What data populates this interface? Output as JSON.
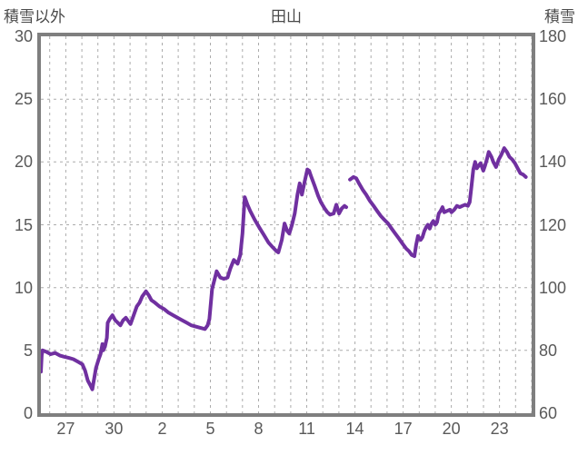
{
  "header": {
    "left_axis_title": "積雪以外",
    "chart_title": "田山",
    "right_axis_title": "積雪"
  },
  "colors": {
    "line": "#7030a0",
    "border": "#7f7f7f",
    "grid": "#ababab",
    "text": "#595959"
  },
  "chart_data": {
    "type": "line",
    "title": "田山",
    "left_axis": {
      "label": "積雪以外",
      "min": 0,
      "max": 30,
      "ticks": [
        30,
        25,
        20,
        15,
        10,
        5,
        0
      ]
    },
    "right_axis": {
      "label": "積雪",
      "min": 60,
      "max": 180,
      "ticks": [
        180,
        160,
        140,
        120,
        100,
        80,
        60
      ]
    },
    "x_axis": {
      "tick_labels": [
        "27",
        "30",
        "2",
        "5",
        "8",
        "11",
        "14",
        "17",
        "20",
        "23"
      ],
      "tick_days": [
        0,
        3,
        6,
        9,
        12,
        15,
        18,
        21,
        24,
        27
      ],
      "domain_days": [
        -1.55,
        29.0
      ],
      "daily_gridlines": true,
      "grid_style": "dashed"
    },
    "legend": "none",
    "series": [
      {
        "name": "積雪",
        "axis": "right",
        "unit": "cm",
        "gap_note": "data gap between day 17.5 and 17.7",
        "segments": [
          [
            [
              -1.55,
              73.2
            ],
            [
              -1.5,
              78.4
            ],
            [
              -1.45,
              80.0
            ],
            [
              -1.23,
              79.6
            ],
            [
              -0.94,
              78.8
            ],
            [
              -0.66,
              79.2
            ],
            [
              -0.38,
              78.4
            ],
            [
              -0.1,
              78.0
            ],
            [
              0.19,
              77.6
            ],
            [
              0.47,
              77.2
            ],
            [
              0.75,
              76.4
            ],
            [
              1.03,
              75.6
            ],
            [
              1.2,
              73.6
            ],
            [
              1.37,
              70.4
            ],
            [
              1.54,
              68.8
            ],
            [
              1.65,
              67.6
            ],
            [
              1.77,
              71.2
            ],
            [
              1.88,
              74.4
            ],
            [
              2.05,
              77.2
            ],
            [
              2.16,
              78.8
            ],
            [
              2.28,
              82.0
            ],
            [
              2.33,
              80.0
            ],
            [
              2.44,
              81.2
            ],
            [
              2.56,
              84.0
            ],
            [
              2.61,
              88.8
            ],
            [
              2.73,
              90.0
            ],
            [
              2.9,
              91.2
            ],
            [
              3.07,
              89.6
            ],
            [
              3.24,
              88.8
            ],
            [
              3.4,
              88.0
            ],
            [
              3.57,
              89.6
            ],
            [
              3.74,
              90.4
            ],
            [
              3.91,
              89.2
            ],
            [
              4.03,
              88.4
            ],
            [
              4.2,
              90.8
            ],
            [
              4.42,
              94.0
            ],
            [
              4.59,
              95.2
            ],
            [
              4.76,
              97.2
            ],
            [
              4.99,
              98.8
            ],
            [
              5.16,
              97.6
            ],
            [
              5.33,
              96.0
            ],
            [
              5.55,
              95.2
            ],
            [
              5.83,
              94.0
            ],
            [
              6.11,
              93.2
            ],
            [
              6.4,
              92.0
            ],
            [
              6.68,
              91.2
            ],
            [
              6.96,
              90.4
            ],
            [
              7.24,
              89.6
            ],
            [
              7.53,
              88.8
            ],
            [
              7.81,
              88.0
            ],
            [
              8.09,
              87.6
            ],
            [
              8.37,
              87.2
            ],
            [
              8.66,
              86.8
            ],
            [
              8.83,
              88.0
            ],
            [
              8.94,
              90.0
            ],
            [
              9.11,
              99.6
            ],
            [
              9.39,
              105.2
            ],
            [
              9.62,
              103.2
            ],
            [
              9.84,
              102.8
            ],
            [
              10.07,
              103.2
            ],
            [
              10.24,
              106.0
            ],
            [
              10.46,
              108.8
            ],
            [
              10.69,
              107.6
            ],
            [
              10.86,
              110.4
            ],
            [
              11.0,
              117.2
            ],
            [
              11.14,
              128.8
            ],
            [
              11.31,
              126.4
            ],
            [
              11.48,
              124.4
            ],
            [
              11.76,
              121.6
            ],
            [
              12.04,
              119.2
            ],
            [
              12.33,
              116.8
            ],
            [
              12.61,
              114.4
            ],
            [
              12.89,
              112.8
            ],
            [
              13.12,
              111.6
            ],
            [
              13.23,
              111.2
            ],
            [
              13.45,
              115.2
            ],
            [
              13.62,
              120.4
            ],
            [
              13.79,
              118.0
            ],
            [
              13.91,
              117.2
            ],
            [
              14.08,
              120.0
            ],
            [
              14.25,
              123.6
            ],
            [
              14.42,
              129.6
            ],
            [
              14.56,
              133.2
            ],
            [
              14.7,
              129.6
            ],
            [
              14.86,
              133.6
            ],
            [
              15.04,
              137.6
            ],
            [
              15.15,
              137.2
            ],
            [
              15.26,
              135.6
            ],
            [
              15.49,
              132.4
            ],
            [
              15.71,
              129.2
            ],
            [
              15.88,
              127.2
            ],
            [
              16.11,
              125.2
            ],
            [
              16.28,
              124.0
            ],
            [
              16.45,
              123.2
            ],
            [
              16.67,
              123.6
            ],
            [
              16.84,
              126.4
            ],
            [
              17.01,
              123.6
            ],
            [
              17.18,
              125.2
            ],
            [
              17.35,
              126.0
            ],
            [
              17.46,
              125.6
            ]
          ],
          [
            [
              17.69,
              134.4
            ],
            [
              17.91,
              135.2
            ],
            [
              18.08,
              134.8
            ],
            [
              18.25,
              133.2
            ],
            [
              18.48,
              131.2
            ],
            [
              18.7,
              129.6
            ],
            [
              18.93,
              127.6
            ],
            [
              19.16,
              126.0
            ],
            [
              19.38,
              124.4
            ],
            [
              19.61,
              122.8
            ],
            [
              19.83,
              121.6
            ],
            [
              20.06,
              120.4
            ],
            [
              20.28,
              118.8
            ],
            [
              20.51,
              117.2
            ],
            [
              20.74,
              115.6
            ],
            [
              20.96,
              114.0
            ],
            [
              21.19,
              112.4
            ],
            [
              21.36,
              111.6
            ],
            [
              21.53,
              110.4
            ],
            [
              21.7,
              110.0
            ],
            [
              21.81,
              113.6
            ],
            [
              21.92,
              116.4
            ],
            [
              22.09,
              115.2
            ],
            [
              22.2,
              116.0
            ],
            [
              22.32,
              118.0
            ],
            [
              22.43,
              119.2
            ],
            [
              22.54,
              120.0
            ],
            [
              22.66,
              118.8
            ],
            [
              22.77,
              120.4
            ],
            [
              22.88,
              121.2
            ],
            [
              23.0,
              120.0
            ],
            [
              23.11,
              120.8
            ],
            [
              23.22,
              123.6
            ],
            [
              23.33,
              124.4
            ],
            [
              23.45,
              125.6
            ],
            [
              23.56,
              124.0
            ],
            [
              23.73,
              124.4
            ],
            [
              23.9,
              124.8
            ],
            [
              24.01,
              124.0
            ],
            [
              24.18,
              124.8
            ],
            [
              24.35,
              126.0
            ],
            [
              24.52,
              125.6
            ],
            [
              24.69,
              126.0
            ],
            [
              24.86,
              126.4
            ],
            [
              25.03,
              126.0
            ],
            [
              25.14,
              127.2
            ],
            [
              25.25,
              132.0
            ],
            [
              25.37,
              137.6
            ],
            [
              25.48,
              140.0
            ],
            [
              25.59,
              138.0
            ],
            [
              25.7,
              138.8
            ],
            [
              25.82,
              139.6
            ],
            [
              25.99,
              137.2
            ],
            [
              26.1,
              138.8
            ],
            [
              26.21,
              140.8
            ],
            [
              26.33,
              143.2
            ],
            [
              26.5,
              141.6
            ],
            [
              26.61,
              140.0
            ],
            [
              26.78,
              138.4
            ],
            [
              26.95,
              140.8
            ],
            [
              27.12,
              142.4
            ],
            [
              27.29,
              144.4
            ],
            [
              27.46,
              143.2
            ],
            [
              27.62,
              141.6
            ],
            [
              27.79,
              140.8
            ],
            [
              27.96,
              139.6
            ],
            [
              28.13,
              138.0
            ],
            [
              28.3,
              136.4
            ],
            [
              28.47,
              136.0
            ],
            [
              28.64,
              135.2
            ]
          ]
        ]
      }
    ]
  }
}
